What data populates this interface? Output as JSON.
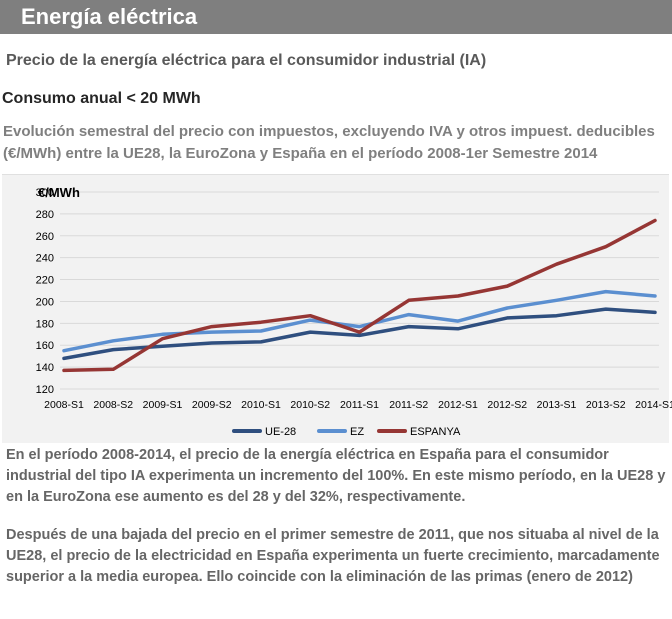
{
  "header": {
    "title": "Energía eléctrica"
  },
  "subtitle": "Precio de la energía eléctrica para el consumidor industrial (IA)",
  "consumption": "Consumo  anual < 20 MWh",
  "description": "Evolución semestral del precio con impuestos, excluyendo  IVA y otros impuest. deducibles (€/MWh) entre la UE28, la EuroZona y España en el período  2008-1er Semestre 2014",
  "paragraphs": [
    "En el período 2008-2014, el precio de la energía eléctrica en España para el consumidor industrial del tipo IA experimenta un incremento del 100%. En este mismo período, en la UE28 y en la EuroZona ese aumento es del 28 y del 32%, respectivamente.",
    "Después de una bajada del precio en el primer semestre de 2011, que nos situaba al nivel de la UE28, el precio de la electricidad en España experimenta un fuerte crecimiento, marcadamente superior a la media europea. Ello coincide con la eliminación de las primas (enero de 2012)"
  ],
  "chart_data": {
    "type": "line",
    "ylabel": "€/MWh",
    "ylim": [
      120,
      300
    ],
    "yticks": [
      120,
      140,
      160,
      180,
      200,
      220,
      240,
      260,
      280,
      300
    ],
    "grid": true,
    "legend_position": "bottom",
    "categories": [
      "2008-S1",
      "2008-S2",
      "2009-S1",
      "2009-S2",
      "2010-S1",
      "2010-S2",
      "2011-S1",
      "2011-S2",
      "2012-S1",
      "2012-S2",
      "2013-S1",
      "2013-S2",
      "2014-S1"
    ],
    "series": [
      {
        "name": "UE-28",
        "color": "#2f4f7f",
        "values": [
          148,
          156,
          159,
          162,
          163,
          172,
          169,
          177,
          175,
          185,
          187,
          193,
          190
        ]
      },
      {
        "name": "EZ",
        "color": "#5b8fd0",
        "values": [
          155,
          164,
          170,
          172,
          173,
          183,
          177,
          188,
          182,
          194,
          201,
          209,
          205
        ]
      },
      {
        "name": "ESPANYA",
        "color": "#963634",
        "values": [
          137,
          138,
          166,
          177,
          181,
          187,
          172,
          201,
          205,
          214,
          234,
          250,
          274
        ]
      }
    ]
  }
}
